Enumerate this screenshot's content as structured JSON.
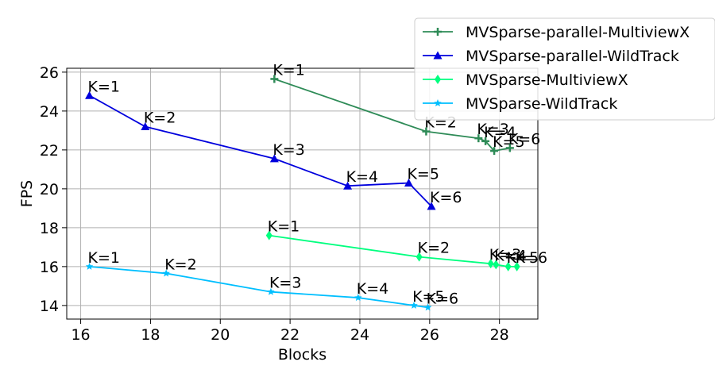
{
  "chart_data": {
    "type": "line",
    "xlabel": "Blocks",
    "ylabel": "FPS",
    "xlim": [
      15.6,
      29.1
    ],
    "ylim": [
      13.3,
      26.2
    ],
    "xticks": [
      16,
      18,
      20,
      22,
      24,
      26,
      28
    ],
    "yticks": [
      14,
      16,
      18,
      20,
      22,
      24,
      26
    ],
    "grid": true,
    "legend": "top-right, outside plot",
    "series": [
      {
        "name": "MVSparse-parallel-MultiviewX",
        "color": "#2e8b57",
        "marker": "plus",
        "x": [
          21.55,
          25.9,
          27.4,
          27.6,
          27.85,
          28.3
        ],
        "y": [
          25.65,
          22.95,
          22.6,
          22.45,
          21.95,
          22.1
        ],
        "labels": [
          "K=1",
          "K=2",
          "K=3",
          "K=4",
          "K=5",
          "K=6"
        ]
      },
      {
        "name": "MVSparse-parallel-WildTrack",
        "color": "#0000dd",
        "marker": "triangle",
        "x": [
          16.25,
          17.85,
          21.55,
          23.65,
          25.4,
          26.05
        ],
        "y": [
          24.8,
          23.2,
          21.55,
          20.15,
          20.3,
          19.1
        ],
        "labels": [
          "K=1",
          "K=2",
          "K=3",
          "K=4",
          "K=5",
          "K=6"
        ]
      },
      {
        "name": "MVSparse-MultiviewX",
        "color": "#00ff7f",
        "marker": "diamond",
        "x": [
          21.4,
          25.7,
          27.75,
          27.9,
          28.25,
          28.5
        ],
        "y": [
          17.6,
          16.5,
          16.15,
          16.1,
          16.0,
          16.0
        ],
        "labels": [
          "K=1",
          "K=2",
          "K=3",
          "K=4",
          "K=5",
          "K=6"
        ]
      },
      {
        "name": "MVSparse-WildTrack",
        "color": "#00bfff",
        "marker": "star",
        "x": [
          16.25,
          18.45,
          21.45,
          23.95,
          25.55,
          25.95
        ],
        "y": [
          16.0,
          15.65,
          14.7,
          14.4,
          14.0,
          13.9
        ],
        "labels": [
          "K=1",
          "K=2",
          "K=3",
          "K=4",
          "K=5",
          "K=6"
        ]
      }
    ]
  }
}
